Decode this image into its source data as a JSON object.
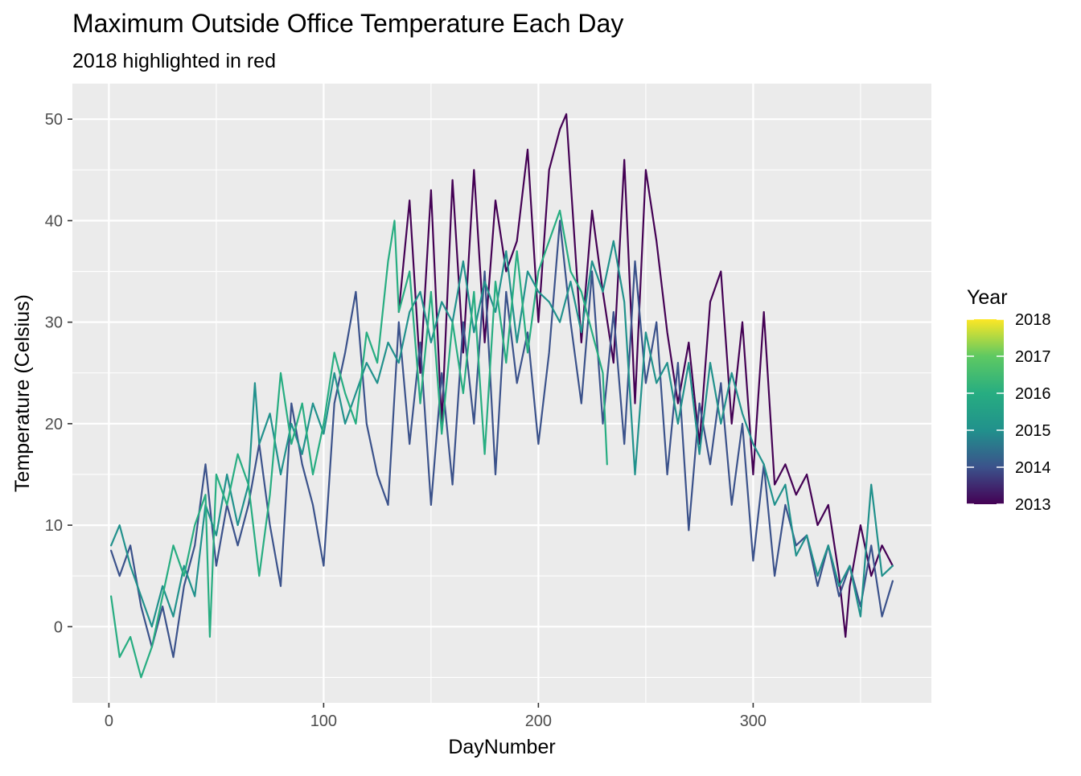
{
  "chart_data": {
    "type": "line",
    "title": "Maximum Outside Office Temperature Each Day",
    "subtitle": "2018 highlighted in red",
    "xlabel": "DayNumber",
    "ylabel": "Temperature (Celsius)",
    "xlim": [
      -17,
      383
    ],
    "ylim": [
      -7.5,
      53.5
    ],
    "x_ticks": [
      0,
      100,
      200,
      300
    ],
    "y_ticks": [
      0,
      10,
      20,
      30,
      40,
      50
    ],
    "grid": true,
    "legend": {
      "title": "Year",
      "position": "right",
      "type": "colorbar",
      "labels": [
        "2018",
        "2017",
        "2016",
        "2015",
        "2014",
        "2013"
      ],
      "range": [
        2013,
        2018
      ]
    },
    "series": [
      {
        "year": 2013,
        "color": "#440154",
        "stroke_width": 2.2,
        "x": [
          135,
          140,
          145,
          150,
          155,
          160,
          165,
          170,
          175,
          180,
          185,
          190,
          195,
          200,
          205,
          210,
          213,
          215,
          220,
          225,
          230,
          235,
          240,
          245,
          250,
          255,
          260,
          265,
          270,
          275,
          280,
          285,
          290,
          295,
          300,
          305,
          310,
          315,
          320,
          325,
          330,
          335,
          340,
          343,
          345,
          350,
          355,
          360,
          365
        ],
        "y": [
          31,
          42,
          25,
          43,
          20,
          44,
          27,
          45,
          28,
          42,
          35,
          38,
          47,
          30,
          45,
          49,
          50.5,
          44,
          28,
          41,
          33,
          26,
          46,
          22,
          45,
          38,
          29,
          22,
          28,
          18,
          32,
          35,
          20,
          30,
          15,
          31,
          14,
          16,
          13,
          15,
          10,
          12,
          5,
          -1,
          4,
          10,
          5,
          8,
          6
        ]
      },
      {
        "year": 2014,
        "color": "#3b528b",
        "stroke_width": 2.2,
        "x": [
          1,
          5,
          10,
          15,
          20,
          25,
          30,
          35,
          40,
          45,
          50,
          55,
          60,
          65,
          70,
          75,
          80,
          85,
          90,
          95,
          100,
          105,
          110,
          115,
          120,
          125,
          130,
          135,
          140,
          145,
          150,
          155,
          160,
          165,
          170,
          175,
          180,
          185,
          190,
          195,
          200,
          205,
          210,
          215,
          220,
          225,
          230,
          235,
          240,
          245,
          250,
          255,
          260,
          265,
          270,
          275,
          280,
          285,
          290,
          295,
          300,
          305,
          310,
          315,
          320,
          325,
          330,
          335,
          340,
          345,
          350,
          355,
          360,
          365
        ],
        "y": [
          7.5,
          5,
          8,
          2,
          -2,
          2,
          -3,
          4,
          8,
          16,
          6,
          12,
          8,
          12,
          18,
          10,
          4,
          22,
          16,
          12,
          6,
          22,
          27,
          33,
          20,
          15,
          12,
          30,
          18,
          28,
          12,
          25,
          14,
          30,
          20,
          35,
          15,
          33,
          24,
          29,
          18,
          27,
          40,
          30,
          22,
          35,
          20,
          31,
          18,
          36,
          24,
          30,
          15,
          26,
          9.5,
          22,
          16,
          24,
          12,
          20,
          6.5,
          16,
          5,
          12,
          8,
          9,
          4,
          8,
          3,
          6,
          2,
          8,
          1,
          4.5
        ]
      },
      {
        "year": 2015,
        "color": "#21918c",
        "stroke_width": 2.2,
        "x": [
          1,
          5,
          10,
          15,
          20,
          25,
          30,
          35,
          40,
          45,
          50,
          55,
          60,
          65,
          68,
          70,
          75,
          80,
          85,
          90,
          95,
          100,
          105,
          110,
          115,
          120,
          125,
          130,
          135,
          140,
          145,
          150,
          155,
          160,
          165,
          170,
          175,
          180,
          185,
          190,
          195,
          200,
          205,
          210,
          215,
          220,
          225,
          230,
          235,
          240,
          245,
          250,
          255,
          260,
          265,
          270,
          275,
          280,
          285,
          290,
          295,
          300,
          305,
          310,
          315,
          320,
          325,
          330,
          335,
          340,
          345,
          350,
          355,
          360,
          365
        ],
        "y": [
          8,
          10,
          6,
          3,
          0,
          4,
          1,
          6,
          3,
          12,
          9,
          15,
          10,
          14,
          24,
          18,
          21,
          15,
          20,
          17,
          22,
          19,
          25,
          20,
          23,
          26,
          24,
          28,
          26,
          31,
          33,
          28,
          32,
          30,
          36,
          29,
          34,
          31,
          37,
          28,
          35,
          33,
          32,
          30,
          34,
          29,
          36,
          33,
          38,
          32,
          15,
          29,
          24,
          26,
          20,
          26,
          17,
          26,
          20,
          25,
          21,
          18,
          16,
          12,
          14,
          7,
          9,
          5,
          8,
          4,
          6,
          1,
          14,
          5,
          6
        ]
      },
      {
        "year": 2016,
        "color": "#27ad81",
        "stroke_width": 2.2,
        "x": [
          1,
          5,
          10,
          15,
          20,
          25,
          30,
          35,
          40,
          45,
          47,
          50,
          55,
          60,
          65,
          70,
          75,
          80,
          85,
          90,
          95,
          100,
          105,
          110,
          115,
          120,
          125,
          130,
          133,
          135,
          140,
          145,
          150,
          155,
          160,
          165,
          170,
          175,
          180,
          185,
          190,
          195,
          200,
          205,
          210,
          215,
          220,
          225,
          230,
          232
        ],
        "y": [
          3,
          -3,
          -1,
          -5,
          -2,
          3,
          8,
          5,
          10,
          13,
          -1,
          15,
          12,
          17,
          14,
          5,
          13,
          25,
          18,
          22,
          15,
          20,
          27,
          23,
          20,
          29,
          26,
          36,
          40,
          31,
          35,
          22,
          33,
          19,
          30,
          23,
          33,
          17,
          34,
          26,
          37,
          27,
          35,
          38,
          41,
          35,
          33,
          29,
          25,
          16
        ]
      }
    ]
  }
}
